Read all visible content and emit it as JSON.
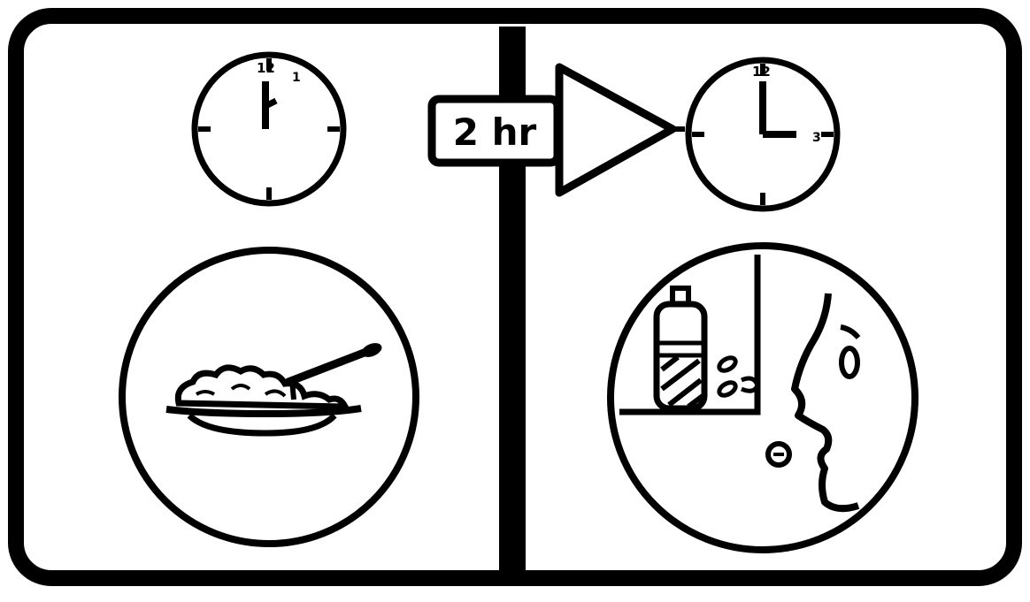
{
  "figure": {
    "time_label": "2 hr",
    "left_clock": {
      "label_12": "12",
      "label_1": "1"
    },
    "right_clock": {
      "label_12": "12",
      "label_3": "3"
    }
  },
  "colors": {
    "ink": "#000000",
    "paper": "#ffffff"
  },
  "icons": {
    "left": [
      "clock-icon",
      "food-plate-icon",
      "fork-icon"
    ],
    "right": [
      "clock-icon",
      "arrow-right-icon",
      "medicine-bottle-icon",
      "pill-icon",
      "face-icon"
    ]
  }
}
